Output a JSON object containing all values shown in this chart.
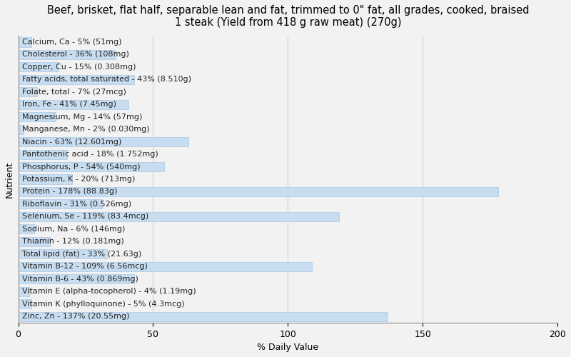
{
  "title": "Beef, brisket, flat half, separable lean and fat, trimmed to 0\" fat, all grades, cooked, braised\n1 steak (Yield from 418 g raw meat) (270g)",
  "xlabel": "% Daily Value",
  "ylabel": "Nutrient",
  "nutrients": [
    "Calcium, Ca - 5% (51mg)",
    "Cholesterol - 36% (108mg)",
    "Copper, Cu - 15% (0.308mg)",
    "Fatty acids, total saturated - 43% (8.510g)",
    "Folate, total - 7% (27mcg)",
    "Iron, Fe - 41% (7.45mg)",
    "Magnesium, Mg - 14% (57mg)",
    "Manganese, Mn - 2% (0.030mg)",
    "Niacin - 63% (12.601mg)",
    "Pantothenic acid - 18% (1.752mg)",
    "Phosphorus, P - 54% (540mg)",
    "Potassium, K - 20% (713mg)",
    "Protein - 178% (88.83g)",
    "Riboflavin - 31% (0.526mg)",
    "Selenium, Se - 119% (83.4mcg)",
    "Sodium, Na - 6% (146mg)",
    "Thiamin - 12% (0.181mg)",
    "Total lipid (fat) - 33% (21.63g)",
    "Vitamin B-12 - 109% (6.56mcg)",
    "Vitamin B-6 - 43% (0.869mg)",
    "Vitamin E (alpha-tocopherol) - 4% (1.19mg)",
    "Vitamin K (phylloquinone) - 5% (4.3mcg)",
    "Zinc, Zn - 137% (20.55mg)"
  ],
  "values": [
    5,
    36,
    15,
    43,
    7,
    41,
    14,
    2,
    63,
    18,
    54,
    20,
    178,
    31,
    119,
    6,
    12,
    33,
    109,
    43,
    4,
    5,
    137
  ],
  "bar_color": "#c8ddf0",
  "bar_edge_color": "#a8c8e8",
  "background_color": "#f2f2f2",
  "plot_bg_color": "#f2f2f2",
  "xlim": [
    0,
    200
  ],
  "xticks": [
    0,
    50,
    100,
    150,
    200
  ],
  "grid_color": "#d0d0d0",
  "title_fontsize": 10.5,
  "label_fontsize": 8,
  "tick_fontsize": 9,
  "bar_height": 0.75
}
